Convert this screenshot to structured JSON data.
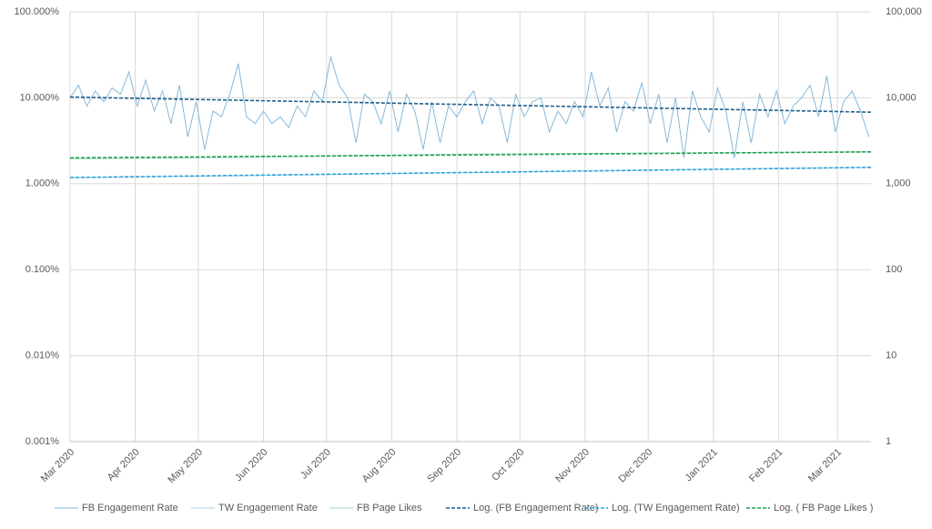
{
  "chart_data": {
    "type": "line",
    "ylog": true,
    "y2log": true,
    "grid": true,
    "legend": "bottom",
    "xlim": [
      0,
      381
    ],
    "xticks": [
      {
        "value": 0,
        "label": "Mar 2020"
      },
      {
        "value": 31,
        "label": "Apr 2020"
      },
      {
        "value": 61,
        "label": "May 2020"
      },
      {
        "value": 92,
        "label": "Jun 2020"
      },
      {
        "value": 122,
        "label": "Jul 2020"
      },
      {
        "value": 153,
        "label": "Aug 2020"
      },
      {
        "value": 184,
        "label": "Sep 2020"
      },
      {
        "value": 214,
        "label": "Oct 2020"
      },
      {
        "value": 245,
        "label": "Nov 2020"
      },
      {
        "value": 275,
        "label": "Dec 2020"
      },
      {
        "value": 306,
        "label": "Jan 2021"
      },
      {
        "value": 337,
        "label": "Feb 2021"
      },
      {
        "value": 365,
        "label": "Mar 2021"
      }
    ],
    "ylim": [
      0.001,
      100
    ],
    "yticks": [
      {
        "value": 0.001,
        "label": "0.001%"
      },
      {
        "value": 0.01,
        "label": "0.010%"
      },
      {
        "value": 0.1,
        "label": "0.100%"
      },
      {
        "value": 1,
        "label": "1.000%"
      },
      {
        "value": 10,
        "label": "10.000%"
      },
      {
        "value": 100,
        "label": "100.000%"
      }
    ],
    "y2lim": [
      1,
      100000
    ],
    "y2ticks": [
      1,
      10,
      100,
      {
        "value": 1000,
        "label": "1,000"
      },
      {
        "value": 10000,
        "label": "10,000"
      },
      {
        "value": 100000,
        "label": "100,000"
      }
    ],
    "series": [
      {
        "name": "FB Engagement Rate",
        "color": "#86b9da",
        "dash": false,
        "x": [
          0,
          4,
          8,
          12,
          16,
          20,
          24,
          28,
          32,
          36,
          40,
          44,
          48,
          52,
          56,
          60,
          64,
          68,
          72,
          76,
          80,
          84,
          88,
          92,
          96,
          100,
          104,
          108,
          112,
          116,
          120,
          124,
          128,
          132,
          136,
          140,
          144,
          148,
          152,
          156,
          160,
          164,
          168,
          172,
          176,
          180,
          184,
          188,
          192,
          196,
          200,
          204,
          208,
          212,
          216,
          220,
          224,
          228,
          232,
          236,
          240,
          244,
          248,
          252,
          256,
          260,
          264,
          268,
          272,
          276,
          280,
          284,
          288,
          292,
          296,
          300,
          304,
          308,
          312,
          316,
          320,
          324,
          328,
          332,
          336,
          340,
          344,
          348,
          352,
          356,
          360,
          364,
          368,
          372,
          376,
          380
        ],
        "values": [
          10,
          14,
          8,
          12,
          9,
          13,
          11,
          20,
          8,
          16,
          7,
          12,
          5,
          14,
          3.5,
          9,
          2.5,
          7,
          6,
          11,
          25,
          6,
          5,
          7,
          5,
          6,
          4.5,
          8,
          6,
          12,
          9,
          30,
          14,
          10,
          3,
          11,
          9,
          5,
          12,
          4,
          11,
          7,
          2.5,
          9,
          3,
          8,
          6,
          9,
          12,
          5,
          10,
          8,
          3,
          11,
          6,
          9,
          10,
          4,
          7,
          5,
          9,
          6,
          20,
          8,
          13,
          4,
          9,
          7,
          15,
          5,
          11,
          3,
          10,
          2,
          12,
          6,
          4,
          13,
          7,
          2,
          9,
          3,
          11,
          6,
          12,
          5,
          8,
          10,
          14,
          6,
          18,
          4,
          9,
          12,
          7,
          3.5
        ]
      },
      {
        "name": "TW Engagement Rate",
        "color": "#a8d3ea",
        "dash": false,
        "x": [
          0,
          60,
          120,
          180,
          240,
          300,
          381
        ],
        "values": [
          1.18,
          1.22,
          1.28,
          1.34,
          1.4,
          1.47,
          1.55
        ]
      },
      {
        "name": "FB Page Likes",
        "color": "#9fd8c4",
        "dash": false,
        "axis": "y2",
        "x": [
          0,
          60,
          120,
          180,
          240,
          300,
          381
        ],
        "values": [
          1950,
          2000,
          2100,
          2200,
          2250,
          2300,
          2350
        ]
      },
      {
        "name": "Log. (FB Engagement Rate)",
        "color": "#1f5f8b",
        "dash": true,
        "x": [
          0,
          381
        ],
        "values": [
          10.2,
          6.8
        ]
      },
      {
        "name": "Log. (TW Engagement Rate)",
        "color": "#2ea3d6",
        "dash": true,
        "x": [
          0,
          381
        ],
        "values": [
          1.18,
          1.55
        ]
      },
      {
        "name": "Log. ( FB Page Likes )",
        "color": "#22a04b",
        "dash": true,
        "axis": "y2",
        "x": [
          0,
          381
        ],
        "values": [
          2000,
          2350
        ]
      }
    ]
  }
}
